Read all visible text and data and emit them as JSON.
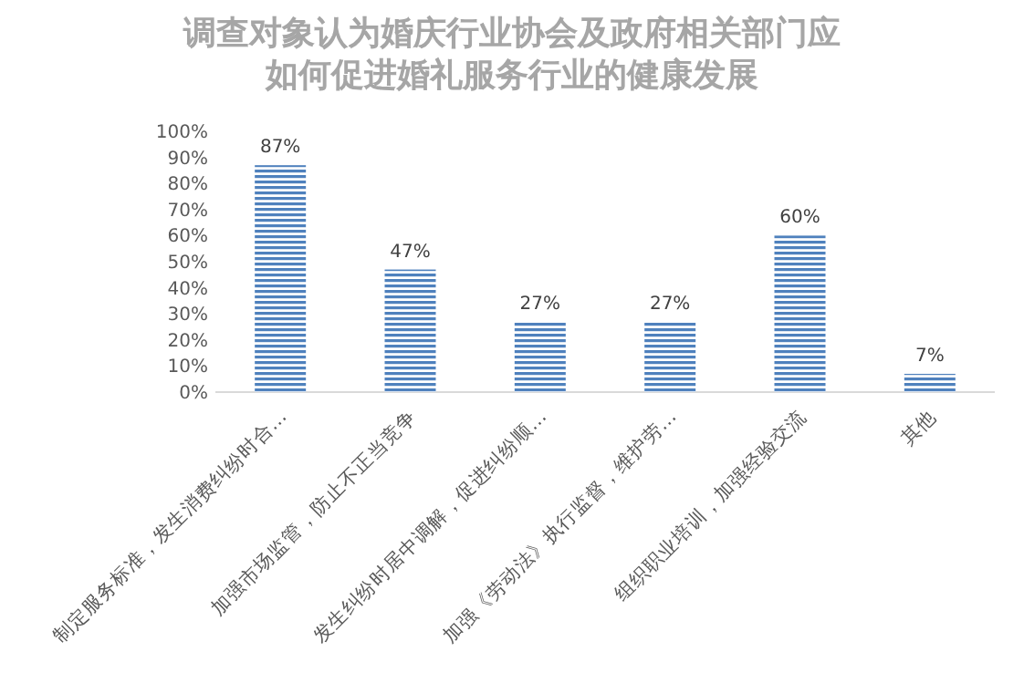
{
  "chart_data": {
    "type": "bar",
    "title": "调查对象认为婚庆行业协会及政府相关部门应如何促进婚礼服务行业的健康发展",
    "categories": [
      "制定服务标准，发生消费纠纷时合…",
      "加强市场监管，防止不正当竞争",
      "发生纠纷时居中调解，促进纠纷顺…",
      "加强《劳动法》执行监督，维护劳…",
      "组织职业培训，加强经验交流",
      "其他"
    ],
    "values": [
      87,
      47,
      27,
      27,
      60,
      7
    ],
    "value_labels": [
      "87%",
      "47%",
      "27%",
      "27%",
      "60%",
      "7%"
    ],
    "color": "#4f81bd",
    "ylim": [
      0,
      100
    ],
    "yticks": [
      {
        "value": 0,
        "label": "0%"
      },
      {
        "value": 10,
        "label": "10%"
      },
      {
        "value": 20,
        "label": "20%"
      },
      {
        "value": 30,
        "label": "30%"
      },
      {
        "value": 40,
        "label": "40%"
      },
      {
        "value": 50,
        "label": "50%"
      },
      {
        "value": 60,
        "label": "60%"
      },
      {
        "value": 70,
        "label": "70%"
      },
      {
        "value": 80,
        "label": "80%"
      },
      {
        "value": 90,
        "label": "90%"
      },
      {
        "value": 100,
        "label": "100%"
      }
    ],
    "grid": false
  }
}
